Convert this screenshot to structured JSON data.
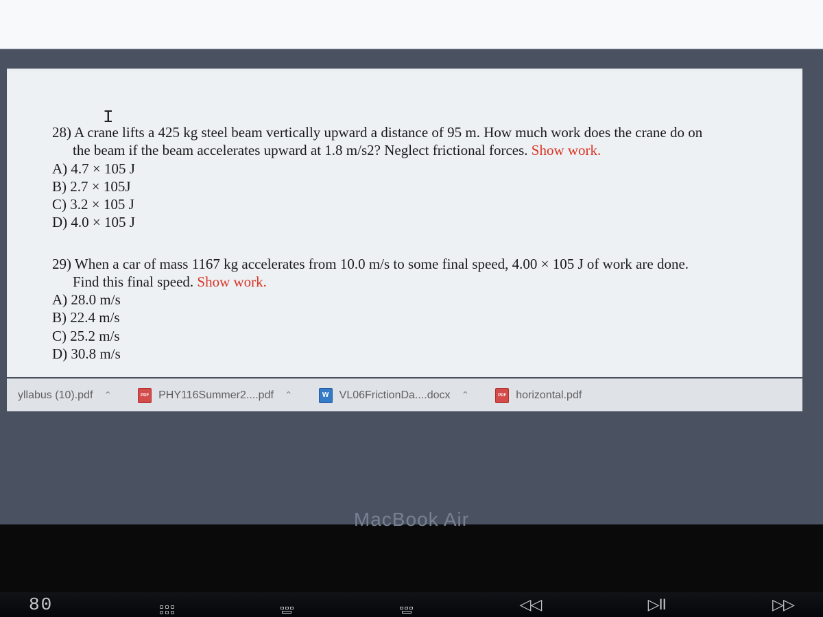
{
  "document": {
    "cursor_glyph": "I",
    "questions": [
      {
        "number": "28)",
        "line1": "A crane lifts a 425 kg steel beam vertically upward a distance of 95 m. How much work does the crane do on",
        "line2": "the beam if the beam accelerates upward at 1.8 m/s2? Neglect frictional forces.",
        "show_work": " Show work.",
        "options": {
          "a": "A) 4.7 × 105 J",
          "b": "B) 2.7 × 105J",
          "c": "C) 3.2 × 105 J",
          "d": "D) 4.0 × 105 J"
        }
      },
      {
        "number": "29)",
        "line1": "When a car of mass 1167 kg accelerates from 10.0 m/s to some final speed, 4.00 × 105 J of work are done.",
        "line2": "Find this final speed.",
        "show_work": "  Show work.",
        "options": {
          "a": "A) 28.0 m/s",
          "b": "B) 22.4 m/s",
          "c": "C) 25.2 m/s",
          "d": "D) 30.8 m/s"
        }
      }
    ],
    "text_color": "#1a1a1a",
    "red_color": "#d83324",
    "background_color": "#eef1f4",
    "font_family": "Times New Roman",
    "font_size_pt": 16
  },
  "downloads": {
    "bar_background": "#dfe2e6",
    "text_color": "#5e5f62",
    "items": [
      {
        "label": "yllabus (10).pdf",
        "type": "pdf"
      },
      {
        "label": "PHY116Summer2....pdf",
        "type": "pdf"
      },
      {
        "label": "VL06FrictionDa....docx",
        "type": "docx"
      },
      {
        "label": "horizontal.pdf",
        "type": "pdf"
      }
    ]
  },
  "hardware": {
    "brand_label": "MacBook Air",
    "brand_color": "#778091",
    "keys": {
      "f1": "80",
      "rewind": "◁◁",
      "playpause": "▷II",
      "fastforward": "▷▷"
    }
  },
  "colors": {
    "body_top": "#1a1d2a",
    "body_mid": "#4a5261",
    "body_bottom": "#0a0a0a"
  }
}
